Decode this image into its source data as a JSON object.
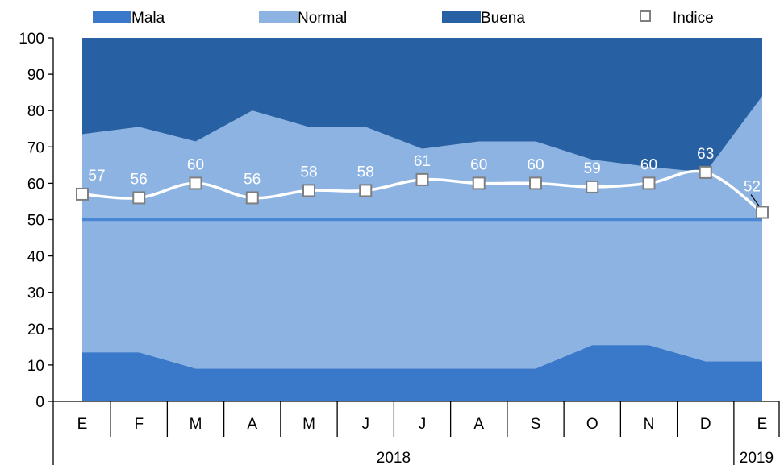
{
  "chart_data": {
    "type": "area",
    "stacked": true,
    "categories": [
      "E",
      "F",
      "M",
      "A",
      "M",
      "J",
      "J",
      "A",
      "S",
      "O",
      "N",
      "D",
      "E"
    ],
    "year_groups": [
      {
        "label": "2018",
        "count": 12
      },
      {
        "label": "2019",
        "count": 1
      }
    ],
    "ylim": [
      0,
      100
    ],
    "yticks": [
      "0",
      "10",
      "20",
      "30",
      "40",
      "50",
      "60",
      "70",
      "80",
      "90",
      "100"
    ],
    "grid": false,
    "legend_position": "top",
    "series": [
      {
        "name": "Mala",
        "kind": "area",
        "color": "#3a78c9",
        "values": [
          13.5,
          13.5,
          9,
          9,
          9,
          9,
          9,
          9,
          9,
          15.5,
          15.5,
          11,
          11
        ]
      },
      {
        "name": "Normal",
        "kind": "area",
        "color": "#8db3e2",
        "values": [
          60,
          62,
          62.5,
          71,
          66.5,
          66.5,
          60.5,
          62.5,
          62.5,
          51,
          49,
          52,
          73
        ]
      },
      {
        "name": "Buena",
        "kind": "area",
        "color": "#2760a3",
        "values": [
          26.5,
          24.5,
          28.5,
          20,
          24.5,
          24.5,
          30.5,
          28.5,
          28.5,
          33.5,
          35.5,
          37,
          16
        ]
      },
      {
        "name": "Indice",
        "kind": "line",
        "color": "#ffffff",
        "values": [
          57,
          56,
          60,
          56,
          58,
          58,
          61,
          60,
          60,
          59,
          60,
          63,
          52
        ],
        "labels": [
          "57",
          "56",
          "60",
          "56",
          "58",
          "58",
          "61",
          "60",
          "60",
          "59",
          "60",
          "63",
          "52"
        ]
      }
    ],
    "reference_line": {
      "value": 50,
      "color": "#4a86d6"
    }
  }
}
